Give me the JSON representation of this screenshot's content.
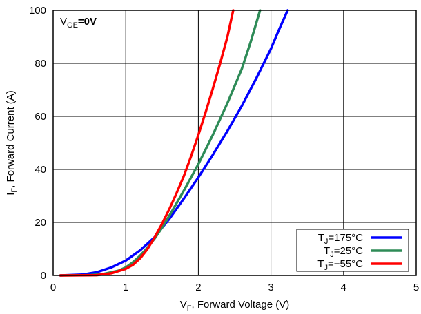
{
  "chart_data": {
    "type": "line",
    "annotation": {
      "main": "V",
      "sub": "GE",
      "rest": "=0V"
    },
    "xlabel": {
      "main": "V",
      "sub": "F",
      "rest": ", Forward Voltage (V)"
    },
    "ylabel": {
      "main": "I",
      "sub": "F",
      "rest": ", Forward Current (A)"
    },
    "xlim": [
      0,
      5
    ],
    "ylim": [
      0,
      100
    ],
    "xticks": [
      0,
      1,
      2,
      3,
      4,
      5
    ],
    "yticks": [
      0,
      20,
      40,
      60,
      80,
      100
    ],
    "grid": true,
    "legend_position": "bottom-right",
    "series": [
      {
        "name": "T_J=175°C",
        "label": {
          "main": "T",
          "sub": "J",
          "rest": "=175°C"
        },
        "color": "#0000ff",
        "x": [
          0.1,
          0.4,
          0.6,
          0.8,
          1.0,
          1.2,
          1.4,
          1.5,
          1.6,
          1.8,
          2.0,
          2.2,
          2.4,
          2.6,
          2.8,
          3.0,
          3.1,
          3.23
        ],
        "y": [
          0,
          0.3,
          1.2,
          3,
          5.6,
          9.5,
          14.5,
          18,
          21.3,
          29,
          37,
          45.5,
          54.5,
          64,
          74.5,
          85.5,
          92,
          100
        ]
      },
      {
        "name": "T_J=25°C",
        "label": {
          "main": "T",
          "sub": "J",
          "rest": "=25°C"
        },
        "color": "#2e8b57",
        "x": [
          0.1,
          0.5,
          0.7,
          0.9,
          1.0,
          1.1,
          1.2,
          1.3,
          1.4,
          1.5,
          1.6,
          1.8,
          2.0,
          2.2,
          2.4,
          2.6,
          2.72,
          2.85
        ],
        "y": [
          0,
          0.1,
          0.6,
          1.8,
          3,
          5,
          7.5,
          10.5,
          14,
          18,
          22.5,
          32,
          42,
          53,
          65,
          78,
          88,
          100
        ]
      },
      {
        "name": "T_J=−55°C",
        "label": {
          "main": "T",
          "sub": "J",
          "rest": "=−55°C"
        },
        "color": "#ff0000",
        "x": [
          0.1,
          0.6,
          0.8,
          1.0,
          1.1,
          1.2,
          1.3,
          1.4,
          1.5,
          1.6,
          1.7,
          1.8,
          1.9,
          2.0,
          2.1,
          2.2,
          2.3,
          2.4,
          2.48
        ],
        "y": [
          0,
          0.1,
          0.8,
          2.5,
          4,
          6.5,
          10,
          14.5,
          19.5,
          25,
          31,
          37.5,
          45,
          53,
          61.5,
          70.5,
          80,
          90,
          100
        ]
      }
    ]
  }
}
